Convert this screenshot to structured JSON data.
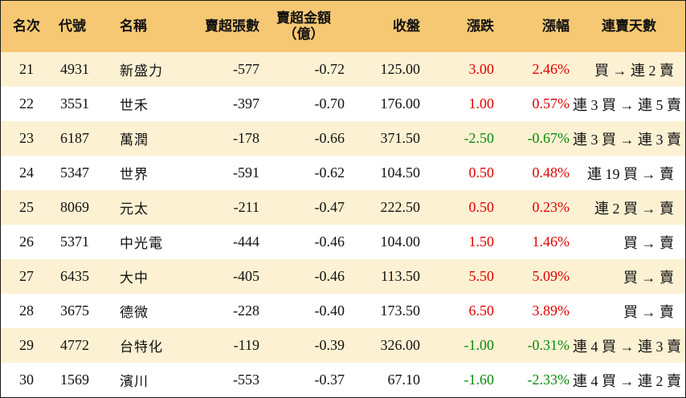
{
  "header": {
    "rank": "名次",
    "code": "代號",
    "name": "名稱",
    "sell_volume": "賣超張數",
    "sell_amount_line1": "賣超金額",
    "sell_amount_line2": "（億）",
    "close": "收盤",
    "change": "漲跌",
    "change_pct": "漲幅",
    "streak": "連賣天數"
  },
  "colors": {
    "header_bg": "#f7c873",
    "stripe_bg": "#fdf1d3",
    "up": "#e00000",
    "down": "#0a8a0a"
  },
  "rows": [
    {
      "rank": "21",
      "code": "4931",
      "name": "新盛力",
      "sell_volume": "-577",
      "sell_amount": "-0.72",
      "close": "125.00",
      "change": "3.00",
      "change_pct": "2.46%",
      "direction": "up",
      "streak": "買 → 連 2 賣"
    },
    {
      "rank": "22",
      "code": "3551",
      "name": "世禾",
      "sell_volume": "-397",
      "sell_amount": "-0.70",
      "close": "176.00",
      "change": "1.00",
      "change_pct": "0.57%",
      "direction": "up",
      "streak": "連 3 買 → 連 5 賣"
    },
    {
      "rank": "23",
      "code": "6187",
      "name": "萬潤",
      "sell_volume": "-178",
      "sell_amount": "-0.66",
      "close": "371.50",
      "change": "-2.50",
      "change_pct": "-0.67%",
      "direction": "down",
      "streak": "連 3 買 → 連 3 賣"
    },
    {
      "rank": "24",
      "code": "5347",
      "name": "世界",
      "sell_volume": "-591",
      "sell_amount": "-0.62",
      "close": "104.50",
      "change": "0.50",
      "change_pct": "0.48%",
      "direction": "up",
      "streak": "連 19 買 → 賣"
    },
    {
      "rank": "25",
      "code": "8069",
      "name": "元太",
      "sell_volume": "-211",
      "sell_amount": "-0.47",
      "close": "222.50",
      "change": "0.50",
      "change_pct": "0.23%",
      "direction": "up",
      "streak": "連 2 買 → 賣"
    },
    {
      "rank": "26",
      "code": "5371",
      "name": "中光電",
      "sell_volume": "-444",
      "sell_amount": "-0.46",
      "close": "104.00",
      "change": "1.50",
      "change_pct": "1.46%",
      "direction": "up",
      "streak": "買 → 賣"
    },
    {
      "rank": "27",
      "code": "6435",
      "name": "大中",
      "sell_volume": "-405",
      "sell_amount": "-0.46",
      "close": "113.50",
      "change": "5.50",
      "change_pct": "5.09%",
      "direction": "up",
      "streak": "買 → 賣"
    },
    {
      "rank": "28",
      "code": "3675",
      "name": "德微",
      "sell_volume": "-228",
      "sell_amount": "-0.40",
      "close": "173.50",
      "change": "6.50",
      "change_pct": "3.89%",
      "direction": "up",
      "streak": "買 → 賣"
    },
    {
      "rank": "29",
      "code": "4772",
      "name": "台特化",
      "sell_volume": "-119",
      "sell_amount": "-0.39",
      "close": "326.00",
      "change": "-1.00",
      "change_pct": "-0.31%",
      "direction": "down",
      "streak": "連 4 買 → 連 3 賣"
    },
    {
      "rank": "30",
      "code": "1569",
      "name": "濱川",
      "sell_volume": "-553",
      "sell_amount": "-0.37",
      "close": "67.10",
      "change": "-1.60",
      "change_pct": "-2.33%",
      "direction": "down",
      "streak": "連 4 買 → 連 2 賣"
    }
  ]
}
